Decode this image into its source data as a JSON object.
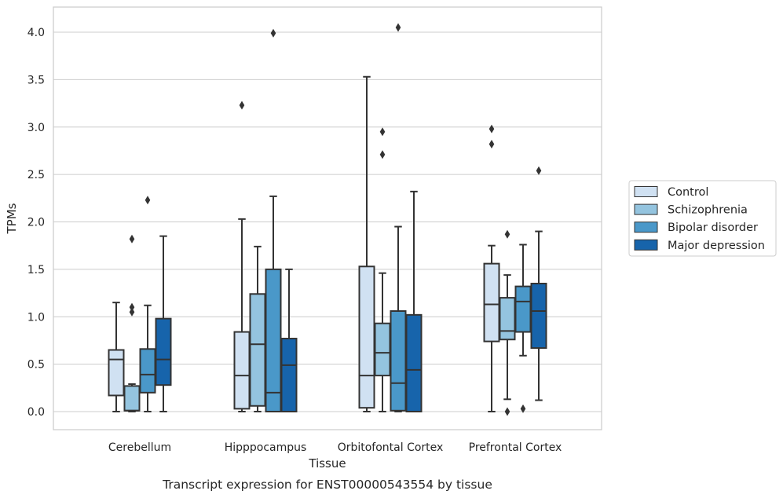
{
  "chart_data": {
    "type": "boxplot",
    "xlabel": "Tissue",
    "ylabel": "TPMs",
    "caption": "Transcript expression for ENST00000543554 by tissue",
    "ylim": [
      -0.2,
      4.27
    ],
    "yticks": [
      "0.0",
      "0.5",
      "1.0",
      "1.5",
      "2.0",
      "2.5",
      "3.0",
      "3.5",
      "4.0"
    ],
    "grid": "horizontal",
    "legend_position": "right",
    "categories": [
      "Cerebellum",
      "Hipppocampus",
      "Orbitofontal Cortex",
      "Prefrontal Cortex"
    ],
    "series": [
      {
        "name": "Control",
        "color": "#d0e1f2",
        "boxes": [
          {
            "whislo": 0.0,
            "q1": 0.17,
            "med": 0.55,
            "q3": 0.65,
            "whishi": 1.15,
            "fliers": []
          },
          {
            "whislo": 0.0,
            "q1": 0.03,
            "med": 0.38,
            "q3": 0.84,
            "whishi": 2.03,
            "fliers": [
              3.23
            ]
          },
          {
            "whislo": 0.0,
            "q1": 0.04,
            "med": 0.38,
            "q3": 1.53,
            "whishi": 3.53,
            "fliers": []
          },
          {
            "whislo": 0.0,
            "q1": 0.74,
            "med": 1.13,
            "q3": 1.56,
            "whishi": 1.75,
            "fliers": [
              2.82,
              2.98
            ]
          }
        ]
      },
      {
        "name": "Schizophrenia",
        "color": "#94c4df",
        "boxes": [
          {
            "whislo": 0.0,
            "q1": 0.01,
            "med": 0.01,
            "q3": 0.27,
            "whishi": 0.29,
            "fliers": [
              1.05,
              1.1,
              1.82
            ]
          },
          {
            "whislo": 0.0,
            "q1": 0.06,
            "med": 0.71,
            "q3": 1.24,
            "whishi": 1.74,
            "fliers": []
          },
          {
            "whislo": 0.0,
            "q1": 0.38,
            "med": 0.62,
            "q3": 0.93,
            "whishi": 1.46,
            "fliers": [
              2.71,
              2.95
            ]
          },
          {
            "whislo": 0.13,
            "q1": 0.76,
            "med": 0.85,
            "q3": 1.2,
            "whishi": 1.44,
            "fliers": [
              0.0,
              1.87
            ]
          }
        ]
      },
      {
        "name": "Bipolar disorder",
        "color": "#4a98c9",
        "boxes": [
          {
            "whislo": 0.0,
            "q1": 0.2,
            "med": 0.39,
            "q3": 0.66,
            "whishi": 1.12,
            "fliers": [
              2.23
            ]
          },
          {
            "whislo": 0.0,
            "q1": 0.0,
            "med": 0.2,
            "q3": 1.5,
            "whishi": 2.27,
            "fliers": [
              3.99
            ]
          },
          {
            "whislo": 0.0,
            "q1": 0.01,
            "med": 0.3,
            "q3": 1.06,
            "whishi": 1.95,
            "fliers": [
              4.05
            ]
          },
          {
            "whislo": 0.59,
            "q1": 0.84,
            "med": 1.16,
            "q3": 1.32,
            "whishi": 1.76,
            "fliers": [
              0.03
            ]
          }
        ]
      },
      {
        "name": "Major depression",
        "color": "#1764ab",
        "boxes": [
          {
            "whislo": 0.0,
            "q1": 0.28,
            "med": 0.55,
            "q3": 0.98,
            "whishi": 1.85,
            "fliers": []
          },
          {
            "whislo": 0.0,
            "q1": 0.0,
            "med": 0.49,
            "q3": 0.77,
            "whishi": 1.5,
            "fliers": []
          },
          {
            "whislo": 0.0,
            "q1": 0.0,
            "med": 0.44,
            "q3": 1.02,
            "whishi": 2.32,
            "fliers": []
          },
          {
            "whislo": 0.12,
            "q1": 0.67,
            "med": 1.06,
            "q3": 1.35,
            "whishi": 1.9,
            "fliers": [
              2.54
            ]
          }
        ]
      }
    ]
  }
}
